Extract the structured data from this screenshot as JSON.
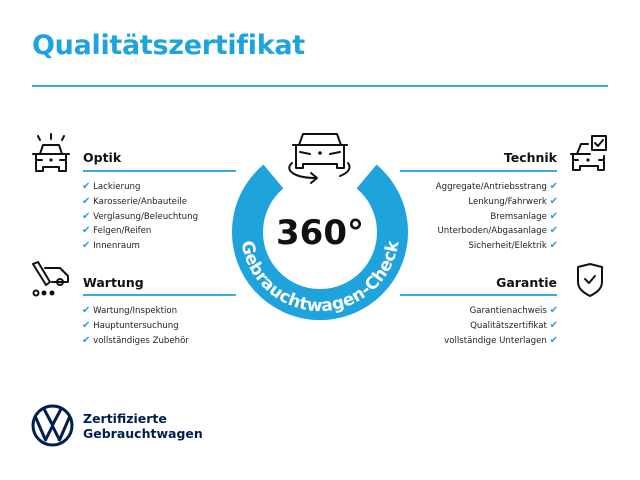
{
  "title": "Qualitätszertifikat",
  "badge": {
    "value": "360°",
    "label": "Gebrauchtwagen-Check"
  },
  "check_symbol": "✔",
  "sections": {
    "optik": {
      "heading": "Optik",
      "icon": "car-lights-icon",
      "items": [
        "Lackierung",
        "Karosserie/Anbauteile",
        "Verglasung/Beleuchtung",
        "Felgen/Reifen",
        "Innenraum"
      ]
    },
    "wartung": {
      "heading": "Wartung",
      "icon": "service-tool-icon",
      "items": [
        "Wartung/Inspektion",
        "Hauptuntersuchung",
        "vollständiges Zubehör"
      ]
    },
    "technik": {
      "heading": "Technik",
      "icon": "car-checkbox-icon",
      "items": [
        "Aggregate/Antriebsstrang",
        "Lenkung/Fahrwerk",
        "Bremsanlage",
        "Unterboden/Abgasanlage",
        "Sicherheit/Elektrik"
      ]
    },
    "garantie": {
      "heading": "Garantie",
      "icon": "shield-check-icon",
      "items": [
        "Garantienachweis",
        "Qualitätszertifikat",
        "vollständige Unterlagen"
      ]
    }
  },
  "footer": {
    "line1": "Zertifizierte",
    "line2": "Gebrauchtwagen"
  },
  "colors": {
    "accent": "#1fa3dc",
    "brand": "#001e50"
  }
}
